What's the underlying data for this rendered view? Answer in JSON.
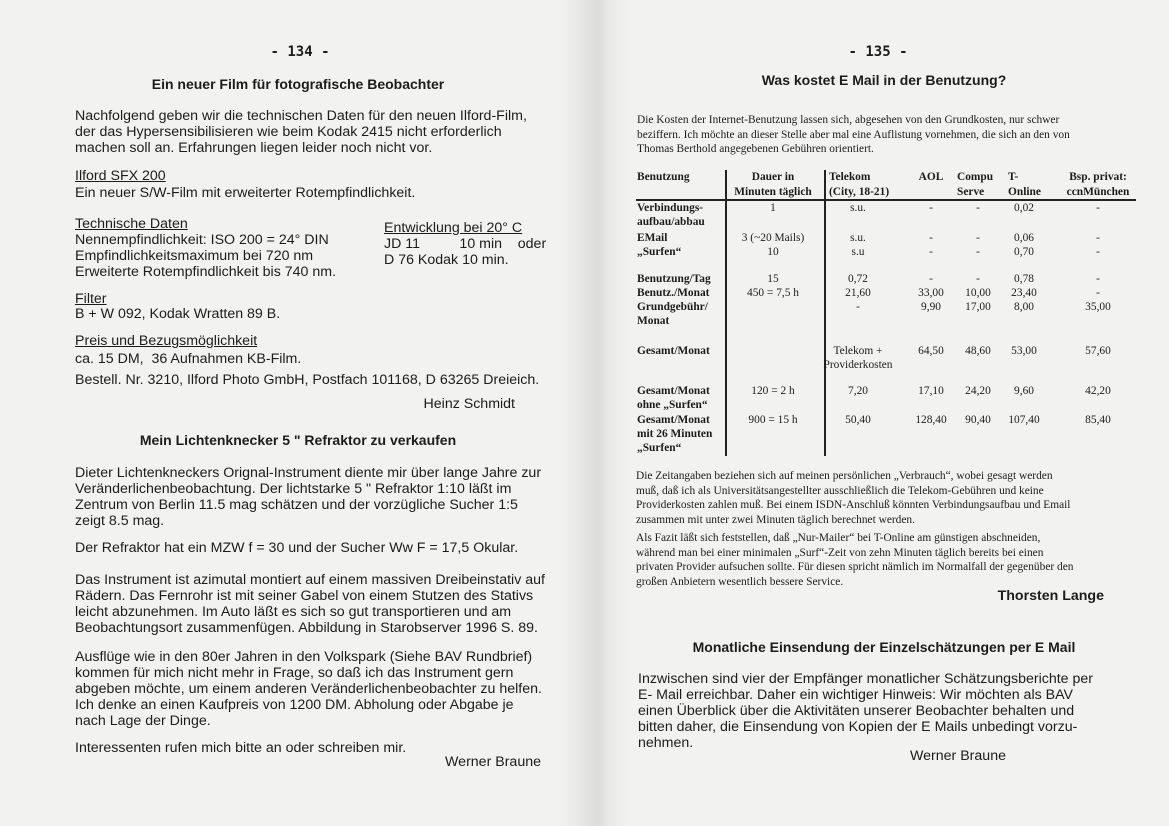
{
  "left": {
    "page_number": "- 134 -",
    "article1": {
      "title": "Ein neuer Film für fotografische Beobachter",
      "intro": [
        "Nachfolgend geben wir die technischen Daten für den neuen Ilford-Film,",
        "der das Hypersensibilisieren wie beim Kodak 2415 nicht erforderlich",
        "machen soll an. Erfahrungen liegen leider noch nicht vor."
      ],
      "film_name": "Ilford SFX 200",
      "film_desc": "Ein neuer S/W-Film mit erweiterter Rotempfindlichkeit.",
      "tech_heading": "Technische Daten",
      "tech_lines": [
        "Nennempfindlichkeit: ISO 200 = 24° DIN",
        "Empfindlichkeitsmaximum bei 720 nm",
        "Erweiterte Rotempfindlichkeit bis 740 nm."
      ],
      "dev_heading": "Entwicklung bei 20° C",
      "dev_lines": [
        "JD 11          10 min    oder",
        "D 76 Kodak 10 min."
      ],
      "filter_heading": "Filter",
      "filter_text": "B + W 092, Kodak Wratten 89 B.",
      "price_heading": "Preis und Bezugsmöglichkeit",
      "price_lines": [
        "ca. 15 DM,  36 Aufnahmen KB-Film.",
        "Bestell. Nr. 3210, Ilford Photo GmbH, Postfach 101168, D 63265 Dreieich."
      ],
      "author": "Heinz Schmidt"
    },
    "article2": {
      "title": "Mein Lichtenknecker 5 \" Refraktor zu verkaufen",
      "p1": [
        "Dieter Lichtenkneckers Orignal-Instrument diente mir über lange Jahre zur",
        "Veränderlichenbeobachtung. Der lichtstarke 5 \" Refraktor 1:10 läßt im",
        "Zentrum von Berlin 11.5 mag schätzen und der vorzügliche Sucher 1:5",
        "zeigt 8.5 mag."
      ],
      "p2": [
        "Der Refraktor hat ein MZW f = 30 und der Sucher Ww F = 17,5 Okular."
      ],
      "p3": [
        "Das Instrument ist azimutal montiert auf einem massiven Dreibeinstativ auf",
        "Rädern. Das Fernrohr ist mit seiner Gabel von einem Stutzen des Stativs",
        "leicht abzunehmen. Im Auto läßt es sich so gut transportieren und am",
        "Beobachtungsort zusammenfügen. Abbildung in Starobserver 1996 S. 89."
      ],
      "p4": [
        "Ausflüge wie in den 80er Jahren in den Volkspark (Siehe BAV Rundbrief)",
        "kommen für mich nicht mehr in Frage, so daß ich das Instrument gern",
        "abgeben möchte, um einem anderen Veränderlichenbeobachter zu helfen.",
        "Ich denke an einen Kaufpreis von 1200 DM. Abholung oder Abgabe je",
        "nach Lage der Dinge."
      ],
      "p5": [
        "Interessenten rufen mich bitte an oder schreiben mir."
      ],
      "author": "Werner Braune"
    }
  },
  "right": {
    "page_number": "- 135 -",
    "article1": {
      "title": "Was kostet E Mail in der Benutzung?",
      "intro": [
        "Die Kosten der Internet-Benutzung lassen sich, abgesehen von den Grundkosten, nur schwer",
        "beziffern. Ich möchte an dieser Stelle aber mal eine Auflistung vornehmen, die sich an den von",
        "Thomas Berthold angegebenen Gebühren orientiert."
      ],
      "table": {
        "headers": [
          [
            "Benutzung"
          ],
          [
            "Dauer in",
            "Minuten täglich"
          ],
          [
            "Telekom",
            "(City, 18-21)"
          ],
          [
            "AOL"
          ],
          [
            "Compu",
            "Serve"
          ],
          [
            "T-",
            "Online"
          ],
          [
            "Bsp. privat:",
            "ccnMünchen"
          ]
        ],
        "rows": [
          {
            "label": [
              "Verbindungs-",
              "aufbau/abbau"
            ],
            "cells": [
              "1",
              "s.u.",
              "-",
              "-",
              "0,02",
              "-"
            ]
          },
          {
            "label": [
              "EMail"
            ],
            "cells": [
              "3 (~20 Mails)",
              "s.u.",
              "-",
              "-",
              "0,06",
              "-"
            ]
          },
          {
            "label": [
              "„Surfen“"
            ],
            "cells": [
              "10",
              "s.u",
              "-",
              "-",
              "0,70",
              "-"
            ]
          },
          {
            "label": [
              "Benutzung/Tag"
            ],
            "cells": [
              "15",
              "0,72",
              "-",
              "-",
              "0,78",
              "-"
            ]
          },
          {
            "label": [
              "Benutz./Monat"
            ],
            "cells": [
              "450 = 7,5 h",
              "21,60",
              "33,00",
              "10,00",
              "23,40",
              "-"
            ]
          },
          {
            "label": [
              "Grundgebühr/",
              "Monat"
            ],
            "cells": [
              "",
              "-",
              "9,90",
              "17,00",
              "8,00",
              "35,00"
            ]
          },
          {
            "label": [
              "Gesamt/Monat"
            ],
            "cells": [
              "",
              "Telekom +\nProviderkosten",
              "64,50",
              "48,60",
              "53,00",
              "57,60"
            ]
          },
          {
            "label": [
              "Gesamt/Monat",
              "ohne „Surfen“"
            ],
            "cells": [
              "120 = 2 h",
              "7,20",
              "17,10",
              "24,20",
              "9,60",
              "42,20"
            ]
          },
          {
            "label": [
              "Gesamt/Monat",
              "mit 26 Minuten",
              "„Surfen“"
            ],
            "cells": [
              "900 = 15 h",
              "50,40",
              "128,40",
              "90,40",
              "107,40",
              "85,40"
            ]
          }
        ]
      },
      "note1": [
        "Die Zeitangaben beziehen sich auf meinen persönlichen „Verbrauch“, wobei gesagt werden",
        "muß, daß ich als Universitätsangestellter ausschließlich die Telekom-Gebühren und keine",
        "Providerkosten zahlen muß. Bei einem ISDN-Anschluß könnten Verbindungsaufbau und Email",
        "zusammen mit unter zwei Minuten täglich berechnet werden."
      ],
      "note2": [
        "Als Fazit läßt sich feststellen, daß „Nur-Mailer“ bei T-Online am günstigen abschneiden,",
        "während man bei einer minimalen „Surf“-Zeit von zehn Minuten täglich bereits bei einen",
        "privaten Provider aufsuchen sollte. Für diesen spricht nämlich im Normalfall der gegenüber den",
        "großen Anbietern wesentlich bessere Service."
      ],
      "author": "Thorsten Lange"
    },
    "article2": {
      "title": "Monatliche Einsendung der Einzelschätzungen per E Mail",
      "text": [
        "Inzwischen sind vier der Empfänger monatlicher Schätzungsberichte per",
        "E- Mail erreichbar. Daher ein wichtiger Hinweis: Wir möchten als BAV",
        "einen Überblick über die Aktivitäten unserer Beobachter behalten und",
        "bitten daher, die Einsendung von Kopien der E Mails unbedingt vorzu-",
        "nehmen."
      ],
      "author": "Werner Braune"
    }
  }
}
